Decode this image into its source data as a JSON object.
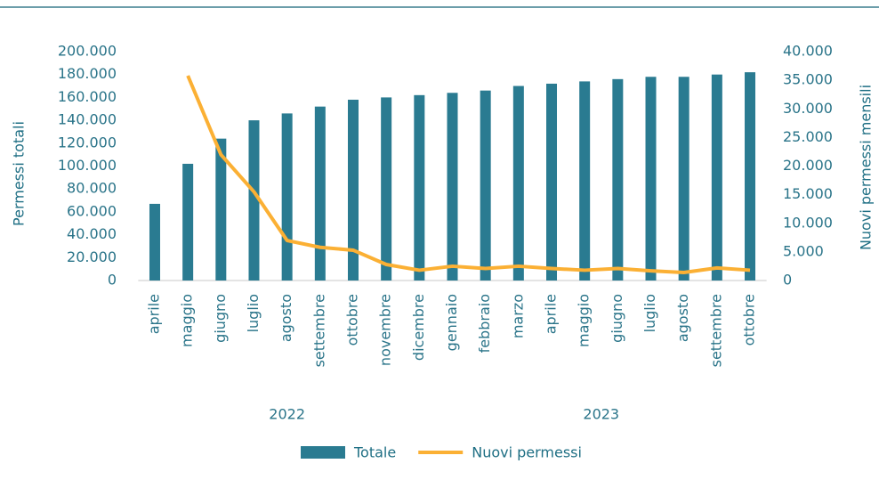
{
  "chart_data": {
    "type": "bar-line",
    "categories": [
      "aprile",
      "maggio",
      "giugno",
      "luglio",
      "agosto",
      "settembre",
      "ottobre",
      "novembre",
      "dicembre",
      "gennaio",
      "febbraio",
      "marzo",
      "aprile",
      "maggio",
      "giugno",
      "luglio",
      "agosto",
      "settembre",
      "ottobre"
    ],
    "groups": [
      {
        "label": "2022",
        "count": 9
      },
      {
        "label": "2023",
        "count": 10
      }
    ],
    "series": [
      {
        "name": "Totale",
        "type": "bar",
        "color": "#2a7b91",
        "values": [
          67000,
          102000,
          124000,
          140000,
          146000,
          152000,
          158000,
          160000,
          162000,
          164000,
          166000,
          170000,
          172000,
          174000,
          176000,
          178000,
          178000,
          180000,
          182000
        ]
      },
      {
        "name": "Nuovi permessi",
        "type": "line",
        "axis": "y2",
        "color": "#fbb034",
        "values": [
          null,
          35800,
          22000,
          15500,
          7000,
          5800,
          5300,
          2800,
          1800,
          2500,
          2100,
          2500,
          2100,
          1800,
          2100,
          1700,
          1400,
          2200,
          1800
        ]
      }
    ],
    "ylabel": "Permessi totali",
    "y2label": "Nuovi permessi mensili",
    "ylim": [
      0,
      200000
    ],
    "yticks": [
      0,
      {
        "value": 20000,
        "label": "20.000"
      },
      {
        "value": 40000,
        "label": "40.000"
      },
      {
        "value": 60000,
        "label": "60.000"
      },
      {
        "value": 80000,
        "label": "80.000"
      },
      {
        "value": 100000,
        "label": "100.000"
      },
      {
        "value": 120000,
        "label": "120.000"
      },
      {
        "value": 140000,
        "label": "140.000"
      },
      {
        "value": 160000,
        "label": "160.000"
      },
      {
        "value": 180000,
        "label": "180.000"
      },
      {
        "value": 200000,
        "label": "200.000"
      }
    ],
    "y2lim": [
      0,
      40000
    ],
    "y2ticks": [
      0,
      {
        "value": 5000,
        "label": "5.000"
      },
      {
        "value": 10000,
        "label": "10.000"
      },
      {
        "value": 15000,
        "label": "15.000"
      },
      {
        "value": 20000,
        "label": "20.000"
      },
      {
        "value": 25000,
        "label": "25.000"
      },
      {
        "value": 30000,
        "label": "30.000"
      },
      {
        "value": 35000,
        "label": "35.000"
      },
      {
        "value": 40000,
        "label": "40.000"
      }
    ],
    "legend": "bottom"
  }
}
